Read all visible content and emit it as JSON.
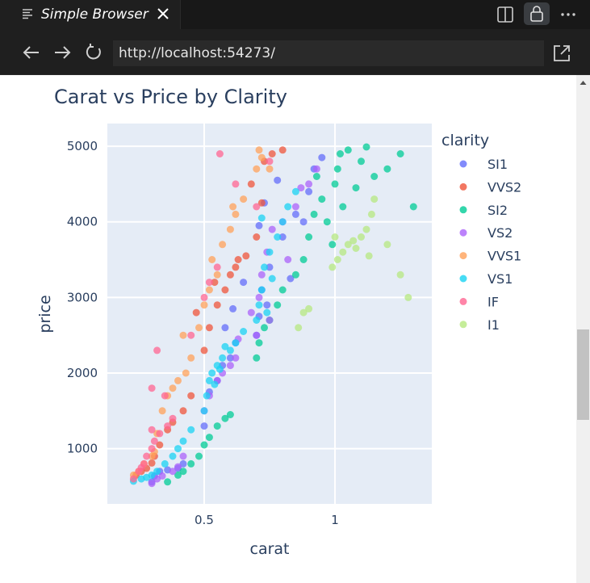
{
  "tab": {
    "title": "Simple Browser",
    "icon": "preview-lines-icon",
    "close_icon": "close-icon"
  },
  "window_actions": [
    "split-editor-icon",
    "lock-icon",
    "more-icon"
  ],
  "nav": {
    "back_icon": "arrow-left-icon",
    "forward_icon": "arrow-right-icon",
    "reload_icon": "reload-icon",
    "url": "http://localhost:54273/",
    "open_external_icon": "open-external-icon"
  },
  "chart_data": {
    "type": "scatter",
    "title": "Carat vs Price by Clarity",
    "xlabel": "carat",
    "ylabel": "price",
    "xlim": [
      0.13,
      1.37
    ],
    "ylim": [
      270,
      5300
    ],
    "xticks": [
      0.5,
      1
    ],
    "yticks": [
      1000,
      2000,
      3000,
      4000,
      5000
    ],
    "xtick_labels": [
      "0.5",
      "1"
    ],
    "ytick_labels": [
      "1000",
      "2000",
      "3000",
      "4000",
      "5000"
    ],
    "grid": true,
    "legend": {
      "title": "clarity",
      "position": "right"
    },
    "series": [
      {
        "name": "SI1",
        "color": "#636efa",
        "points": [
          [
            0.3,
            560
          ],
          [
            0.31,
            640
          ],
          [
            0.33,
            700
          ],
          [
            0.36,
            720
          ],
          [
            0.4,
            740
          ],
          [
            0.42,
            800
          ],
          [
            0.5,
            1300
          ],
          [
            0.52,
            1750
          ],
          [
            0.55,
            1900
          ],
          [
            0.57,
            2100
          ],
          [
            0.6,
            2200
          ],
          [
            0.62,
            2400
          ],
          [
            0.7,
            2500
          ],
          [
            0.71,
            2750
          ],
          [
            0.72,
            3100
          ],
          [
            0.75,
            3400
          ],
          [
            0.8,
            3800
          ],
          [
            0.85,
            4100
          ],
          [
            0.9,
            4400
          ],
          [
            0.92,
            4700
          ],
          [
            0.95,
            4850
          ],
          [
            0.71,
            3950
          ],
          [
            0.73,
            4250
          ],
          [
            0.78,
            4550
          ],
          [
            0.61,
            2850
          ],
          [
            0.65,
            3200
          ],
          [
            0.74,
            2900
          ],
          [
            0.83,
            3250
          ],
          [
            0.88,
            4000
          ],
          [
            0.58,
            2600
          ]
        ]
      },
      {
        "name": "VVS2",
        "color": "#ef553b",
        "points": [
          [
            0.24,
            650
          ],
          [
            0.26,
            700
          ],
          [
            0.28,
            740
          ],
          [
            0.3,
            810
          ],
          [
            0.31,
            900
          ],
          [
            0.33,
            1050
          ],
          [
            0.36,
            1250
          ],
          [
            0.38,
            1350
          ],
          [
            0.42,
            1500
          ],
          [
            0.45,
            1700
          ],
          [
            0.5,
            2300
          ],
          [
            0.52,
            2600
          ],
          [
            0.55,
            2900
          ],
          [
            0.58,
            3100
          ],
          [
            0.6,
            3300
          ],
          [
            0.62,
            3400
          ],
          [
            0.66,
            3550
          ],
          [
            0.7,
            3800
          ],
          [
            0.72,
            4250
          ],
          [
            0.73,
            4800
          ],
          [
            0.76,
            4900
          ],
          [
            0.8,
            4950
          ],
          [
            0.54,
            3200
          ],
          [
            0.47,
            2800
          ],
          [
            0.63,
            3500
          ],
          [
            0.68,
            4500
          ]
        ]
      },
      {
        "name": "SI2",
        "color": "#00cc96",
        "points": [
          [
            0.36,
            560
          ],
          [
            0.4,
            650
          ],
          [
            0.42,
            700
          ],
          [
            0.45,
            800
          ],
          [
            0.48,
            900
          ],
          [
            0.5,
            1050
          ],
          [
            0.52,
            1150
          ],
          [
            0.55,
            1300
          ],
          [
            0.58,
            1400
          ],
          [
            0.6,
            1450
          ],
          [
            0.7,
            2200
          ],
          [
            0.71,
            2400
          ],
          [
            0.73,
            2600
          ],
          [
            0.75,
            2700
          ],
          [
            0.78,
            2900
          ],
          [
            0.8,
            3100
          ],
          [
            0.85,
            3300
          ],
          [
            0.88,
            3500
          ],
          [
            0.9,
            3800
          ],
          [
            0.92,
            4100
          ],
          [
            0.95,
            4300
          ],
          [
            1.0,
            4500
          ],
          [
            1.01,
            4700
          ],
          [
            1.02,
            4900
          ],
          [
            1.05,
            4950
          ],
          [
            1.1,
            4800
          ],
          [
            1.15,
            4600
          ],
          [
            1.2,
            4700
          ],
          [
            1.25,
            4900
          ],
          [
            1.3,
            4200
          ],
          [
            0.99,
            3700
          ],
          [
            1.03,
            4200
          ],
          [
            1.08,
            4450
          ],
          [
            1.12,
            4990
          ],
          [
            0.93,
            4600
          ],
          [
            0.97,
            4000
          ]
        ]
      },
      {
        "name": "VS2",
        "color": "#ab63fa",
        "points": [
          [
            0.3,
            540
          ],
          [
            0.32,
            600
          ],
          [
            0.34,
            640
          ],
          [
            0.38,
            700
          ],
          [
            0.4,
            760
          ],
          [
            0.42,
            900
          ],
          [
            0.5,
            1500
          ],
          [
            0.52,
            1700
          ],
          [
            0.55,
            1900
          ],
          [
            0.57,
            2000
          ],
          [
            0.6,
            2100
          ],
          [
            0.62,
            2200
          ],
          [
            0.7,
            2500
          ],
          [
            0.71,
            3000
          ],
          [
            0.72,
            3300
          ],
          [
            0.74,
            3600
          ],
          [
            0.76,
            3900
          ],
          [
            0.8,
            4000
          ],
          [
            0.85,
            4200
          ],
          [
            0.9,
            4500
          ],
          [
            0.93,
            4700
          ],
          [
            0.75,
            2700
          ],
          [
            0.82,
            3500
          ],
          [
            0.87,
            4450
          ],
          [
            0.63,
            2450
          ],
          [
            0.68,
            2800
          ]
        ]
      },
      {
        "name": "VVS1",
        "color": "#ffa15a",
        "points": [
          [
            0.23,
            650
          ],
          [
            0.25,
            700
          ],
          [
            0.27,
            800
          ],
          [
            0.3,
            900
          ],
          [
            0.31,
            960
          ],
          [
            0.32,
            1200
          ],
          [
            0.34,
            1500
          ],
          [
            0.36,
            1700
          ],
          [
            0.38,
            1800
          ],
          [
            0.4,
            1900
          ],
          [
            0.43,
            2000
          ],
          [
            0.45,
            2200
          ],
          [
            0.48,
            2600
          ],
          [
            0.5,
            2900
          ],
          [
            0.52,
            3100
          ],
          [
            0.55,
            3300
          ],
          [
            0.57,
            3700
          ],
          [
            0.6,
            3900
          ],
          [
            0.62,
            4100
          ],
          [
            0.65,
            4300
          ],
          [
            0.7,
            4700
          ],
          [
            0.71,
            4950
          ],
          [
            0.72,
            4850
          ],
          [
            0.75,
            4700
          ],
          [
            0.42,
            2500
          ],
          [
            0.53,
            3500
          ],
          [
            0.61,
            4200
          ]
        ]
      },
      {
        "name": "VS1",
        "color": "#19d3f3",
        "points": [
          [
            0.23,
            570
          ],
          [
            0.26,
            600
          ],
          [
            0.28,
            620
          ],
          [
            0.3,
            650
          ],
          [
            0.32,
            700
          ],
          [
            0.35,
            800
          ],
          [
            0.38,
            900
          ],
          [
            0.4,
            1000
          ],
          [
            0.5,
            1500
          ],
          [
            0.51,
            1700
          ],
          [
            0.52,
            1900
          ],
          [
            0.53,
            2000
          ],
          [
            0.55,
            2100
          ],
          [
            0.57,
            2200
          ],
          [
            0.6,
            2300
          ],
          [
            0.62,
            2400
          ],
          [
            0.7,
            2700
          ],
          [
            0.71,
            2900
          ],
          [
            0.72,
            3100
          ],
          [
            0.73,
            3400
          ],
          [
            0.75,
            3600
          ],
          [
            0.78,
            3800
          ],
          [
            0.8,
            4000
          ],
          [
            0.82,
            4200
          ],
          [
            0.85,
            4400
          ],
          [
            0.72,
            4050
          ],
          [
            0.76,
            3250
          ],
          [
            0.65,
            2550
          ],
          [
            0.58,
            2350
          ],
          [
            0.45,
            1250
          ],
          [
            0.42,
            1100
          ],
          [
            0.74,
            2800
          ],
          [
            0.54,
            1850
          ],
          [
            0.56,
            2050
          ]
        ]
      },
      {
        "name": "IF",
        "color": "#ff6692",
        "points": [
          [
            0.23,
            600
          ],
          [
            0.25,
            700
          ],
          [
            0.27,
            800
          ],
          [
            0.28,
            900
          ],
          [
            0.3,
            1000
          ],
          [
            0.31,
            1100
          ],
          [
            0.33,
            1200
          ],
          [
            0.36,
            1300
          ],
          [
            0.38,
            1400
          ],
          [
            0.3,
            1800
          ],
          [
            0.32,
            2300
          ],
          [
            0.35,
            1700
          ],
          [
            0.45,
            2500
          ],
          [
            0.5,
            3000
          ],
          [
            0.52,
            3200
          ],
          [
            0.55,
            3400
          ],
          [
            0.56,
            4900
          ],
          [
            0.62,
            4500
          ],
          [
            0.7,
            4200
          ],
          [
            0.75,
            4800
          ],
          [
            0.3,
            1250
          ],
          [
            0.26,
            750
          ]
        ]
      },
      {
        "name": "I1",
        "color": "#b6e880",
        "points": [
          [
            0.86,
            2600
          ],
          [
            0.88,
            2800
          ],
          [
            0.9,
            2850
          ],
          [
            0.99,
            3400
          ],
          [
            1.01,
            3500
          ],
          [
            1.03,
            3600
          ],
          [
            1.05,
            3700
          ],
          [
            1.07,
            3750
          ],
          [
            1.1,
            3800
          ],
          [
            1.12,
            3900
          ],
          [
            1.14,
            4100
          ],
          [
            1.15,
            4300
          ],
          [
            1.2,
            3700
          ],
          [
            1.25,
            3300
          ],
          [
            1.28,
            3000
          ],
          [
            1.0,
            3800
          ],
          [
            1.08,
            3650
          ],
          [
            1.13,
            3550
          ]
        ]
      }
    ]
  }
}
